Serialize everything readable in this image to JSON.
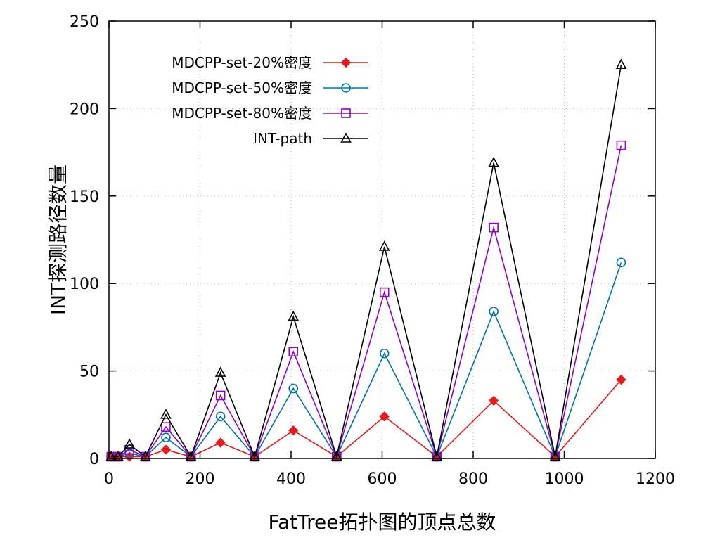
{
  "chart_data": {
    "type": "line",
    "xlabel": "FatTree拓扑图的顶点总数",
    "ylabel": "INT探测路径数量",
    "xlim": [
      0,
      1200
    ],
    "ylim": [
      0,
      250
    ],
    "xticks": [
      0,
      200,
      400,
      600,
      800,
      1000,
      1200
    ],
    "yticks": [
      0,
      50,
      100,
      150,
      200,
      250
    ],
    "grid": true,
    "legend_position": "top-left",
    "x": [
      5,
      20,
      45,
      80,
      125,
      180,
      245,
      320,
      405,
      500,
      605,
      720,
      845,
      980,
      1125
    ],
    "series": [
      {
        "name": "MDCPP-set-20%密度",
        "color": "#e41a1c",
        "marker": "diamond",
        "values": [
          1,
          1,
          1,
          1,
          5,
          1,
          9,
          1,
          16,
          1,
          24,
          1,
          33,
          1,
          45
        ]
      },
      {
        "name": "MDCPP-set-50%密度",
        "color": "#0072b2",
        "marker": "circle",
        "values": [
          1,
          1,
          3,
          1,
          12,
          1,
          24,
          1,
          40,
          1,
          60,
          1,
          84,
          1,
          112
        ]
      },
      {
        "name": "MDCPP-set-80%密度",
        "color": "#9400d3",
        "marker": "square",
        "values": [
          1,
          1,
          5,
          1,
          18,
          1,
          36,
          1,
          61,
          1,
          95,
          1,
          132,
          1,
          179
        ]
      },
      {
        "name": "INT-path",
        "color": "#000000",
        "marker": "triangle",
        "values": [
          1,
          1,
          8,
          1,
          25,
          1,
          49,
          1,
          81,
          1,
          121,
          1,
          169,
          1,
          225
        ]
      }
    ]
  }
}
